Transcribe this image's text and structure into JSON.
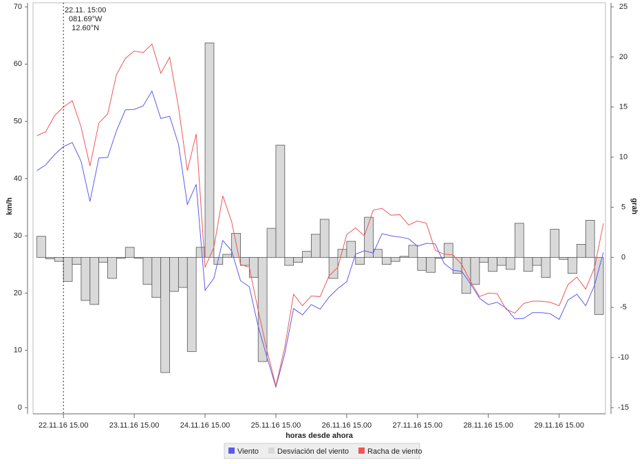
{
  "chart_data": {
    "type": "line",
    "x_label": "horas desde ahora",
    "y_label": "km/h",
    "y2_label": "grah",
    "annotations": [
      "22.11. 15:00",
      "081.69°W",
      "12.60°N"
    ],
    "x": [
      -9,
      -6,
      -3,
      0,
      3,
      6,
      9,
      12,
      15,
      18,
      21,
      24,
      27,
      30,
      33,
      36,
      39,
      42,
      45,
      48,
      51,
      54,
      57,
      60,
      63,
      66,
      69,
      72,
      75,
      78,
      81,
      84,
      87,
      90,
      93,
      96,
      99,
      102,
      105,
      108,
      111,
      114,
      117,
      120,
      123,
      126,
      129,
      132,
      135,
      138,
      141,
      144,
      147,
      150,
      153,
      156,
      159,
      162,
      165,
      168,
      171,
      174,
      177,
      180,
      183
    ],
    "xlim": [
      -10.3,
      183.7
    ],
    "xticks": [
      {
        "value": 0,
        "label": "22.11.16 15.00"
      },
      {
        "value": 24,
        "label": "23.11.16 15.00"
      },
      {
        "value": 48,
        "label": "24.11.16 15.00"
      },
      {
        "value": 72,
        "label": "25.11.16 15.00"
      },
      {
        "value": 96,
        "label": "26.11.16 15.00"
      },
      {
        "value": 120,
        "label": "27.11.16 15.00"
      },
      {
        "value": 144,
        "label": "28.11.16 15.00"
      },
      {
        "value": 168,
        "label": "29.11.16 15.00"
      }
    ],
    "ylim": [
      0,
      70
    ],
    "yticks": [
      0,
      10,
      20,
      30,
      40,
      50,
      60,
      70
    ],
    "y2lim": [
      -15,
      25
    ],
    "y2ticks": [
      -15,
      -10,
      -5,
      0,
      5,
      10,
      15,
      20,
      25
    ],
    "series": [
      {
        "name": "Viento",
        "color": "#5a5aee",
        "type": "line",
        "values": [
          41.4,
          42.4,
          44.2,
          45.6,
          46.3,
          43,
          36,
          43.6,
          43.7,
          48.4,
          52,
          52.1,
          52.7,
          55.3,
          50.5,
          50.9,
          46,
          35.5,
          39,
          20.5,
          22.6,
          29.2,
          27.4,
          22.2,
          21.1,
          14.2,
          8.8,
          3.6,
          9.4,
          17.3,
          16.2,
          18,
          17.2,
          19.3,
          20.8,
          22,
          26.8,
          27.4,
          27,
          30.4,
          30,
          29.8,
          29.5,
          28.2,
          28.7,
          28.6,
          25.2,
          24,
          23.8,
          21.6,
          19.1,
          18,
          18.4,
          17.4,
          15.5,
          15.6,
          16.6,
          16.6,
          16.4,
          15.4,
          18.8,
          19.8,
          17.8,
          21.4,
          27.1
        ]
      },
      {
        "name": "Desviación del viento",
        "color": "#d9d9d9",
        "type": "bar",
        "axis": "y2",
        "values": [
          2.1,
          -0.15,
          -0.4,
          -2.4,
          -0.7,
          -4.3,
          -4.7,
          -0.5,
          -2.1,
          -0.1,
          1.0,
          -0.1,
          -2.7,
          -4.0,
          -11.5,
          -3.4,
          -3.0,
          -9.4,
          1.0,
          21.4,
          -0.7,
          0.3,
          2.4,
          -0.8,
          -2.0,
          -10.4,
          2.9,
          11.2,
          -0.8,
          -0.5,
          0.6,
          2.3,
          3.8,
          -2.1,
          0.8,
          1.6,
          -0.7,
          4.0,
          0.8,
          -0.7,
          -0.4,
          0.1,
          1.2,
          -1.3,
          -1.5,
          -0.1,
          1.4,
          -1.6,
          -3.6,
          -2.7,
          -0.5,
          -1.4,
          -0.8,
          -1.2,
          3.4,
          -1.4,
          -0.8,
          -2.0,
          2.8,
          -0.2,
          -1.6,
          1.3,
          3.7,
          -5.7,
          null
        ]
      },
      {
        "name": "Racha de viento",
        "color": "#ee5555",
        "type": "line",
        "values": [
          47.5,
          48.2,
          51,
          52.5,
          53.6,
          49,
          42.2,
          49.7,
          51.3,
          58.2,
          61,
          62.3,
          62,
          63.5,
          58.4,
          61.2,
          52.5,
          41.4,
          47.8,
          24.5,
          28,
          37,
          32.5,
          25,
          24.5,
          17,
          10,
          3.8,
          10.5,
          19.8,
          17.8,
          19.5,
          19.4,
          23,
          24.5,
          30.2,
          31.4,
          30,
          34.5,
          34.8,
          33.6,
          33.7,
          31.9,
          32.6,
          32.2,
          27.5,
          26.8,
          26.7,
          25,
          22,
          19.4,
          20,
          19.9,
          17.2,
          16.5,
          18.2,
          18.6,
          18.6,
          18.4,
          17.8,
          21.5,
          22.8,
          20.7,
          24.5,
          32.2
        ]
      }
    ]
  }
}
